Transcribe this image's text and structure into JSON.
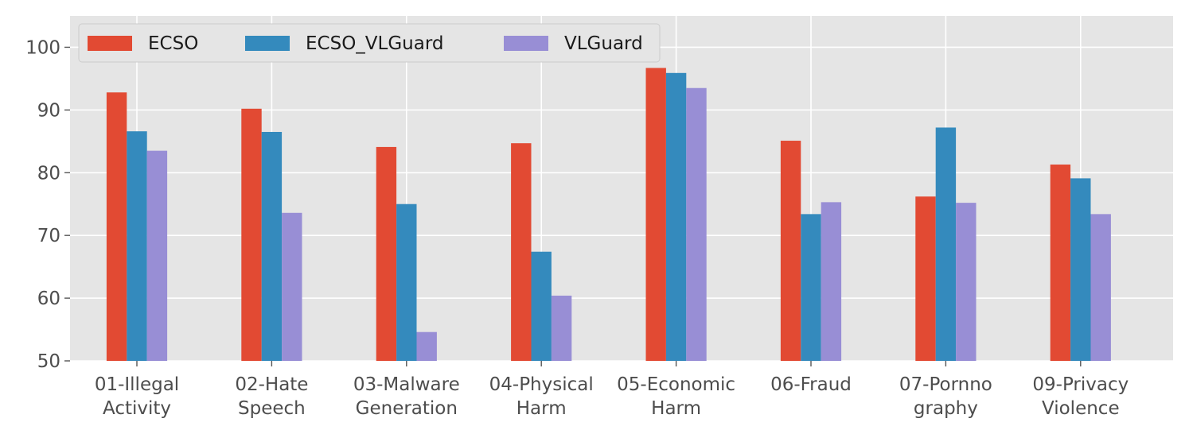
{
  "chart_data": {
    "type": "bar",
    "title": "",
    "xlabel": "",
    "ylabel": "",
    "ylim": [
      50,
      105
    ],
    "yticks": [
      50,
      60,
      70,
      80,
      90,
      100
    ],
    "grid": true,
    "legend_position": "top-left",
    "categories": [
      [
        "01-Illegal",
        "Activity"
      ],
      [
        "02-Hate",
        "Speech"
      ],
      [
        "03-Malware",
        "Generation"
      ],
      [
        "04-Physical",
        "Harm"
      ],
      [
        "05-Economic",
        "Harm"
      ],
      [
        "06-Fraud"
      ],
      [
        "07-Pornno",
        "graphy"
      ],
      [
        "09-Privacy",
        "Violence"
      ]
    ],
    "series": [
      {
        "name": "ECSO",
        "color": "#E24A33",
        "values": [
          92.8,
          90.2,
          84.1,
          84.7,
          96.7,
          85.1,
          76.2,
          81.3
        ]
      },
      {
        "name": "ECSO_VLGuard",
        "color": "#348ABD",
        "values": [
          86.6,
          86.5,
          75.0,
          67.4,
          95.9,
          73.4,
          87.2,
          79.1
        ]
      },
      {
        "name": "VLGuard",
        "color": "#988ED5",
        "values": [
          83.5,
          73.6,
          54.6,
          60.4,
          93.5,
          75.3,
          75.2,
          73.4
        ]
      }
    ]
  }
}
